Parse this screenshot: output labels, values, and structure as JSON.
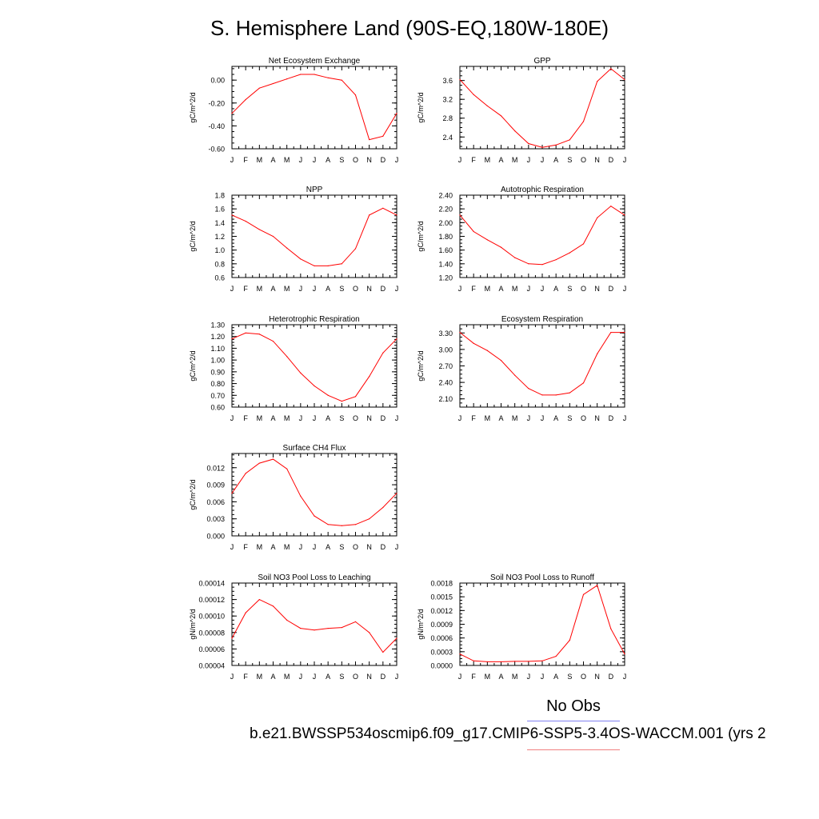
{
  "title": "S. Hemisphere Land (90S-EQ,180W-180E)",
  "legend": {
    "obs_label": "No Obs",
    "case_label": "b.e21.BWSSP534oscmip6.f09_g17.CMIP6-SSP5-3.4OS-WACCM.001 (yrs 2",
    "obs_color": "#8080f0",
    "case_color": "#f08080"
  },
  "chart_data": [
    {
      "type": "line",
      "title": "Net Ecosystem Exchange",
      "ylabel": "gC/m^2/d",
      "categories": [
        "J",
        "F",
        "M",
        "A",
        "M",
        "J",
        "J",
        "A",
        "S",
        "O",
        "N",
        "D",
        "J"
      ],
      "values": [
        -0.29,
        -0.17,
        -0.07,
        -0.03,
        0.01,
        0.05,
        0.05,
        0.02,
        0.0,
        -0.13,
        -0.52,
        -0.49,
        -0.29
      ],
      "ylim": [
        -0.6,
        0.12
      ],
      "yticks": [
        -0.6,
        -0.4,
        -0.2,
        0.0
      ],
      "yticklabels": [
        "-0.60",
        "-0.40",
        "-0.20",
        "0.00"
      ],
      "color": "#ff0000"
    },
    {
      "type": "line",
      "title": "GPP",
      "ylabel": "gC/m^2/d",
      "categories": [
        "J",
        "F",
        "M",
        "A",
        "M",
        "J",
        "J",
        "A",
        "S",
        "O",
        "N",
        "D",
        "J"
      ],
      "values": [
        3.62,
        3.3,
        3.06,
        2.85,
        2.53,
        2.26,
        2.18,
        2.23,
        2.34,
        2.73,
        3.58,
        3.85,
        3.62
      ],
      "ylim": [
        2.15,
        3.9
      ],
      "yticks": [
        2.4,
        2.8,
        3.2,
        3.6
      ],
      "yticklabels": [
        "2.4",
        "2.8",
        "3.2",
        "3.6"
      ],
      "color": "#ff0000"
    },
    {
      "type": "line",
      "title": "NPP",
      "ylabel": "gC/m^2/d",
      "categories": [
        "J",
        "F",
        "M",
        "A",
        "M",
        "J",
        "J",
        "A",
        "S",
        "O",
        "N",
        "D",
        "J"
      ],
      "values": [
        1.51,
        1.42,
        1.3,
        1.2,
        1.03,
        0.87,
        0.77,
        0.77,
        0.8,
        1.02,
        1.51,
        1.61,
        1.51
      ],
      "ylim": [
        0.6,
        1.8
      ],
      "yticks": [
        0.6,
        0.8,
        1.0,
        1.2,
        1.4,
        1.6,
        1.8
      ],
      "yticklabels": [
        "0.6",
        "0.8",
        "1.0",
        "1.2",
        "1.4",
        "1.6",
        "1.8"
      ],
      "color": "#ff0000"
    },
    {
      "type": "line",
      "title": "Autotrophic Respiration",
      "ylabel": "gC/m^2/d",
      "categories": [
        "J",
        "F",
        "M",
        "A",
        "M",
        "J",
        "J",
        "A",
        "S",
        "O",
        "N",
        "D",
        "J"
      ],
      "values": [
        2.11,
        1.87,
        1.75,
        1.64,
        1.49,
        1.4,
        1.39,
        1.46,
        1.56,
        1.69,
        2.07,
        2.24,
        2.11
      ],
      "ylim": [
        1.2,
        2.4
      ],
      "yticks": [
        1.2,
        1.4,
        1.6,
        1.8,
        2.0,
        2.2,
        2.4
      ],
      "yticklabels": [
        "1.20",
        "1.40",
        "1.60",
        "1.80",
        "2.00",
        "2.20",
        "2.40"
      ],
      "color": "#ff0000"
    },
    {
      "type": "line",
      "title": "Heterotrophic Respiration",
      "ylabel": "gC/m^2/d",
      "categories": [
        "J",
        "F",
        "M",
        "A",
        "M",
        "J",
        "J",
        "A",
        "S",
        "O",
        "N",
        "D",
        "J"
      ],
      "values": [
        1.18,
        1.23,
        1.22,
        1.16,
        1.03,
        0.89,
        0.78,
        0.7,
        0.65,
        0.69,
        0.86,
        1.06,
        1.18
      ],
      "ylim": [
        0.6,
        1.3
      ],
      "yticks": [
        0.6,
        0.7,
        0.8,
        0.9,
        1.0,
        1.1,
        1.2,
        1.3
      ],
      "yticklabels": [
        "0.60",
        "0.70",
        "0.80",
        "0.90",
        "1.00",
        "1.10",
        "1.20",
        "1.30"
      ],
      "color": "#ff0000"
    },
    {
      "type": "line",
      "title": "Ecosystem Respiration",
      "ylabel": "gC/m^2/d",
      "categories": [
        "J",
        "F",
        "M",
        "A",
        "M",
        "J",
        "J",
        "A",
        "S",
        "O",
        "N",
        "D",
        "J"
      ],
      "values": [
        3.31,
        3.11,
        2.98,
        2.8,
        2.53,
        2.29,
        2.17,
        2.17,
        2.21,
        2.39,
        2.92,
        3.31,
        3.31
      ],
      "ylim": [
        1.95,
        3.45
      ],
      "yticks": [
        2.1,
        2.4,
        2.7,
        3.0,
        3.3
      ],
      "yticklabels": [
        "2.10",
        "2.40",
        "2.70",
        "3.00",
        "3.30"
      ],
      "color": "#ff0000"
    },
    {
      "type": "line",
      "title": "Surface CH4 Flux",
      "ylabel": "gC/m^2/d",
      "categories": [
        "J",
        "F",
        "M",
        "A",
        "M",
        "J",
        "J",
        "A",
        "S",
        "O",
        "N",
        "D",
        "J"
      ],
      "values": [
        0.0075,
        0.011,
        0.0128,
        0.0135,
        0.0118,
        0.007,
        0.0035,
        0.002,
        0.0018,
        0.002,
        0.003,
        0.005,
        0.0075
      ],
      "ylim": [
        0.0,
        0.0145
      ],
      "yticks": [
        0.0,
        0.003,
        0.006,
        0.009,
        0.012
      ],
      "yticklabels": [
        "0.000",
        "0.003",
        "0.006",
        "0.009",
        "0.012"
      ],
      "color": "#ff0000"
    },
    {
      "type": "line",
      "title": "Soil NO3 Pool Loss to Leaching",
      "ylabel": "gN/m^2/d",
      "categories": [
        "J",
        "F",
        "M",
        "A",
        "M",
        "J",
        "J",
        "A",
        "S",
        "O",
        "N",
        "D",
        "J"
      ],
      "values": [
        7.3e-05,
        0.000104,
        0.00012,
        0.000112,
        9.5e-05,
        8.5e-05,
        8.3e-05,
        8.5e-05,
        8.6e-05,
        9.3e-05,
        8e-05,
        5.6e-05,
        7.3e-05
      ],
      "ylim": [
        4e-05,
        0.00014
      ],
      "yticks": [
        4e-05,
        6e-05,
        8e-05,
        0.0001,
        0.00012,
        0.00014
      ],
      "yticklabels": [
        "0.00004",
        "0.00006",
        "0.00008",
        "0.00010",
        "0.00012",
        "0.00014"
      ],
      "color": "#ff0000"
    },
    {
      "type": "line",
      "title": "Soil NO3 Pool Loss to Runoff",
      "ylabel": "gN/m^2/d",
      "categories": [
        "J",
        "F",
        "M",
        "A",
        "M",
        "J",
        "J",
        "A",
        "S",
        "O",
        "N",
        "D",
        "J"
      ],
      "values": [
        0.00025,
        0.0001,
        8e-05,
        8e-05,
        9e-05,
        9e-05,
        0.0001,
        0.0002,
        0.00055,
        0.00155,
        0.00175,
        0.0008,
        0.00025
      ],
      "ylim": [
        0.0,
        0.0018
      ],
      "yticks": [
        0.0,
        0.0003,
        0.0006,
        0.0009,
        0.0012,
        0.0015,
        0.0018
      ],
      "yticklabels": [
        "0.0000",
        "0.0003",
        "0.0006",
        "0.0009",
        "0.0012",
        "0.0015",
        "0.0018"
      ],
      "color": "#ff0000"
    }
  ]
}
